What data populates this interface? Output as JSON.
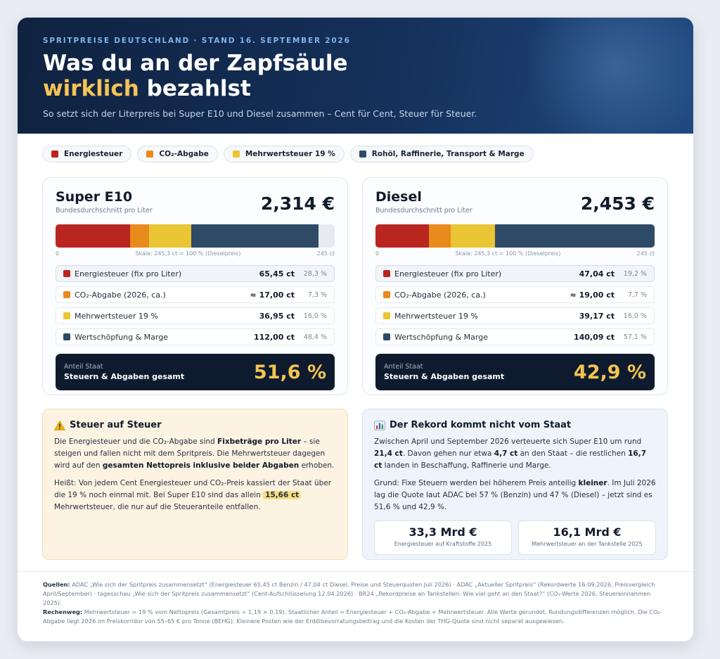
{
  "header": {
    "eyebrow": "SPRITPREISE DEUTSCHLAND · STAND 16. SEPTEMBER 2026",
    "title_line1": "Was du an der Zapfsäule",
    "title_hl": "wirklich",
    "title_rest": " bezahlst",
    "subtitle": "So setzt sich der Literpreis bei Super E10 und Diesel zusammen – Cent für Cent, Steuer für Steuer."
  },
  "legend": [
    {
      "label": "Energiesteuer",
      "color": "#b8261f"
    },
    {
      "label": "CO₂-Abgabe",
      "color": "#e88a1c"
    },
    {
      "label": "Mehrwertsteuer 19 %",
      "color": "#eac534"
    },
    {
      "label": "Rohöl, Raffinerie, Transport & Marge",
      "color": "#2e4a66"
    }
  ],
  "fuels": [
    {
      "name": "Super E10",
      "sub": "Bundesdurchschnitt pro Liter",
      "price": "2,314 €",
      "scale_left": "0",
      "scale_mid": "Skala: 245,3 ct = 100 % (Dieselpreis)",
      "scale_right": "245 ct",
      "scale_max": 245.3,
      "segments": [
        65.45,
        17.0,
        36.95,
        112.0
      ],
      "rows": [
        {
          "label": "Energiesteuer (fix pro Liter)",
          "value": "65,45 ct",
          "pct": "28,3 %"
        },
        {
          "label": "CO₂-Abgabe (2026, ca.)",
          "value": "≈ 17,00 ct",
          "pct": "7,3 %"
        },
        {
          "label": "Mehrwertsteuer 19 %",
          "value": "36,95 ct",
          "pct": "16,0 %"
        },
        {
          "label": "Wertschöpfung & Marge",
          "value": "112,00 ct",
          "pct": "48,4 %"
        }
      ],
      "total_small": "Anteil Staat",
      "total_label": "Steuern & Abgaben gesamt",
      "total_pct": "51,6 %"
    },
    {
      "name": "Diesel",
      "sub": "Bundesdurchschnitt pro Liter",
      "price": "2,453 €",
      "scale_left": "0",
      "scale_mid": "Skala: 245,3 ct = 100 % (Dieselpreis)",
      "scale_right": "245 ct",
      "scale_max": 245.3,
      "segments": [
        47.04,
        19.0,
        39.17,
        140.09
      ],
      "rows": [
        {
          "label": "Energiesteuer (fix pro Liter)",
          "value": "47,04 ct",
          "pct": "19,2 %"
        },
        {
          "label": "CO₂-Abgabe (2026, ca.)",
          "value": "≈ 19,00 ct",
          "pct": "7,7 %"
        },
        {
          "label": "Mehrwertsteuer 19 %",
          "value": "39,17 ct",
          "pct": "16,0 %"
        },
        {
          "label": "Wertschöpfung & Marge",
          "value": "140,09 ct",
          "pct": "57,1 %"
        }
      ],
      "total_small": "Anteil Staat",
      "total_label": "Steuern & Abgaben gesamt",
      "total_pct": "42,9 %"
    }
  ],
  "tax_on_tax": {
    "icon": "warning-icon",
    "title": "Steuer auf Steuer",
    "p1_a": "Die Energiesteuer und die CO₂-Abgabe sind ",
    "p1_b": "Fixbeträge pro Liter",
    "p1_c": " – sie steigen und fallen nicht mit dem Spritpreis. Die Mehrwertsteuer dagegen wird auf den ",
    "p1_d": "gesamten Nettopreis inklusive beider Abgaben",
    "p1_e": " erhoben.",
    "p2_a": "Heißt: Von jedem Cent Energiesteuer und CO₂-Preis kassiert der Staat über die 19 % noch einmal mit. Bei Super E10 sind das allein ",
    "p2_b": "15,66 ct",
    "p2_c": " Mehrwertsteuer, die nur auf die Steueranteile entfallen."
  },
  "record": {
    "icon": "bar-chart-icon",
    "title": "Der Rekord kommt nicht vom Staat",
    "p1_a": "Zwischen April und September 2026 verteuerte sich Super E10 um rund ",
    "p1_b": "21,4 ct",
    "p1_c": ". Davon gehen nur etwa ",
    "p1_d": "4,7 ct",
    "p1_e": " an den Staat – die restlichen ",
    "p1_f": "16,7 ct",
    "p1_g": " landen in Beschaffung, Raffinerie und Marge.",
    "p2_a": "Grund: Fixe Steuern werden bei höherem Preis anteilig ",
    "p2_b": "kleiner",
    "p2_c": ". Im Juli 2026 lag die Quote laut ADAC bei 57 % (Benzin) und 47 % (Diesel) – jetzt sind es 51,6 % und 42,9 %.",
    "stats": [
      {
        "value": "33,3 Mrd €",
        "label": "Energiesteuer auf Kraftstoffe 2025"
      },
      {
        "value": "16,1 Mrd €",
        "label": "Mehrwertsteuer an der Tankstelle 2025"
      }
    ]
  },
  "footer": {
    "sources_label": "Quellen:",
    "sources_text": " ADAC „Wie sich der Spritpreis zusammensetzt“ (Energiesteuer 65,45 ct Benzin / 47,04 ct Diesel, Preise und Steuerquoten Juli 2026) · ADAC „Aktueller Spritpreis“ (Rekordwerte 16.09.2026, Preisvergleich April/September) · tagesschau „Wie sich der Spritpreis zusammensetzt“ (Cent-Aufschlüsselung 12.04.2026) · BR24 „Rekordpreise an Tankstellen: Wie viel geht an den Staat?“ (CO₂-Werte 2026, Steuereinnahmen 2025).",
    "calc_label": "Rechenweg:",
    "calc_text": " Mehrwertsteuer = 19 % vom Nettopreis (Gesamtpreis ÷ 1,19 × 0,19). Staatlicher Anteil = Energiesteuer + CO₂-Abgabe + Mehrwertsteuer. Alle Werte gerundet, Rundungsdifferenzen möglich. Die CO₂-Abgabe liegt 2026 im Preiskorridor von 55–65 € pro Tonne (BEHG). Kleinere Posten wie der Erdölbevorratungsbeitrag und die Kosten der THG-Quote sind nicht separat ausgewiesen."
  }
}
